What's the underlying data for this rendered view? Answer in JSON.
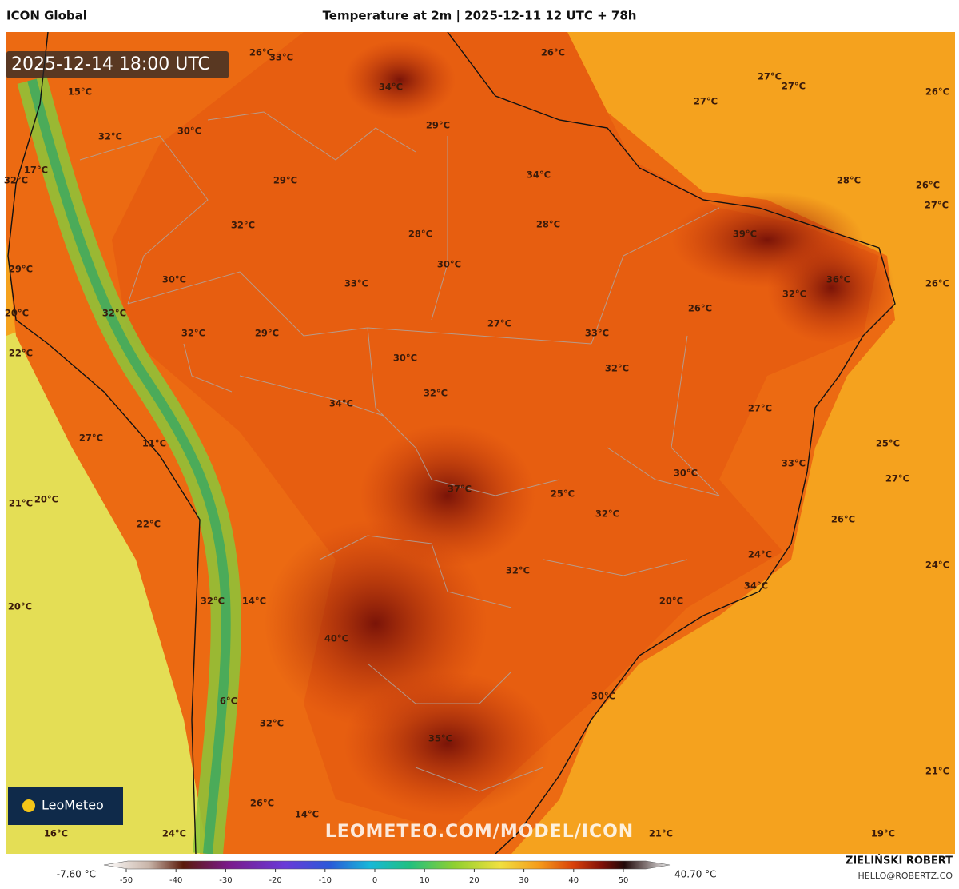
{
  "header": {
    "model": "ICON Global",
    "title": "Temperature at 2m | 2025-12-11 12 UTC + 78h"
  },
  "valid_time": "2025-12-14 18:00 UTC",
  "logo": "LeoMeteo",
  "watermark": "LEOMETEO.COM/MODEL/ICON",
  "map_labels": [
    "26°C",
    "33°C",
    "26°C",
    "27°C",
    "27°C",
    "26°C",
    "15°C",
    "34°C",
    "27°C",
    "30°C",
    "29°C",
    "32°C",
    "17°C",
    "32°C",
    "34°C",
    "29°C",
    "28°C",
    "26°C",
    "27°C",
    "32°C",
    "28°C",
    "28°C",
    "39°C",
    "30°C",
    "29°C",
    "30°C",
    "33°C",
    "36°C",
    "26°C",
    "32°C",
    "26°C",
    "20°C",
    "32°C",
    "27°C",
    "33°C",
    "32°C",
    "29°C",
    "22°C",
    "30°C",
    "32°C",
    "32°C",
    "34°C",
    "27°C",
    "27°C",
    "11°C",
    "25°C",
    "33°C",
    "30°C",
    "27°C",
    "37°C",
    "25°C",
    "21°C",
    "20°C",
    "32°C",
    "26°C",
    "22°C",
    "24°C",
    "24°C",
    "32°C",
    "34°C",
    "32°C",
    "14°C",
    "20°C",
    "20°C",
    "40°C",
    "30°C",
    "6°C",
    "32°C",
    "35°C",
    "21°C",
    "26°C",
    "14°C",
    "16°C",
    "24°C",
    "21°C",
    "19°C"
  ],
  "colorbar": {
    "min_label": "-7.60 °C",
    "max_label": "40.70 °C",
    "ticks": [
      -50,
      -40,
      -30,
      -20,
      -10,
      0,
      10,
      20,
      30,
      40,
      50
    ]
  },
  "author": {
    "name": "ZIELIŃSKI ROBERT",
    "email": "HELLO@ROBERTZ.CO"
  }
}
